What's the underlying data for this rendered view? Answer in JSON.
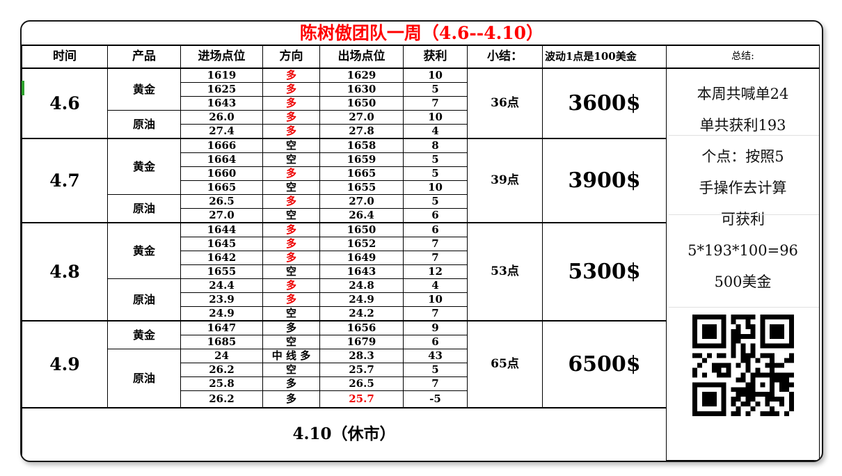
{
  "title": "陈树傲团队一周（4.6--4.10）",
  "columns": {
    "time": "时间",
    "product": "产品",
    "entry": "进场点位",
    "direction": "方向",
    "exit": "出场点位",
    "profit": "获利",
    "subtotal": "小结：",
    "note": "波动1点是100美金",
    "summary": "总结:"
  },
  "sections": [
    {
      "date": "4.6",
      "subtotal": "36点",
      "money": "3600$",
      "products": [
        {
          "name": "黄金"
        },
        {
          "name": "原油"
        }
      ],
      "rows": [
        {
          "entry": "1619",
          "direction": "多",
          "exit": "1629",
          "profit": "10"
        },
        {
          "entry": "1625",
          "direction": "多",
          "exit": "1630",
          "profit": "5"
        },
        {
          "entry": "1643",
          "direction": "多",
          "exit": "1650",
          "profit": "7"
        },
        {
          "entry": "26.0",
          "direction": "多",
          "exit": "27.0",
          "profit": "10"
        },
        {
          "entry": "27.4",
          "direction": "多",
          "exit": "27.8",
          "profit": "4"
        }
      ]
    },
    {
      "date": "4.7",
      "subtotal": "39点",
      "money": "3900$",
      "products": [
        {
          "name": "黄金"
        },
        {
          "name": "原油"
        }
      ],
      "rows": [
        {
          "entry": "1666",
          "direction": "空",
          "exit": "1658",
          "profit": "8"
        },
        {
          "entry": "1664",
          "direction": "空",
          "exit": "1659",
          "profit": "5"
        },
        {
          "entry": "1660",
          "direction": "多",
          "exit": "1665",
          "profit": "5"
        },
        {
          "entry": "1665",
          "direction": "空",
          "exit": "1655",
          "profit": "10"
        },
        {
          "entry": "26.5",
          "direction": "多",
          "exit": "27.0",
          "profit": "5"
        },
        {
          "entry": "27.0",
          "direction": "空",
          "exit": "26.4",
          "profit": "6"
        }
      ]
    },
    {
      "date": "4.8",
      "subtotal": "53点",
      "money": "5300$",
      "products": [
        {
          "name": "黄金"
        },
        {
          "name": "原油"
        }
      ],
      "rows": [
        {
          "entry": "1644",
          "direction": "多",
          "exit": "1650",
          "profit": "6"
        },
        {
          "entry": "1645",
          "direction": "多",
          "exit": "1652",
          "profit": "7"
        },
        {
          "entry": "1642",
          "direction": "多",
          "exit": "1649",
          "profit": "7"
        },
        {
          "entry": "1655",
          "direction": "空",
          "exit": "1643",
          "profit": "12"
        },
        {
          "entry": "24.4",
          "direction": "多",
          "exit": "24.8",
          "profit": "4"
        },
        {
          "entry": "23.9",
          "direction": "多",
          "exit": "24.9",
          "profit": "10"
        },
        {
          "entry": "24.9",
          "direction": "空",
          "exit": "24.2",
          "profit": "7"
        }
      ]
    },
    {
      "date": "4.9",
      "subtotal": "65点",
      "money": "6500$",
      "products": [
        {
          "name": "黄金"
        },
        {
          "name": "原油"
        }
      ],
      "rows": [
        {
          "entry": "1647",
          "direction": "多",
          "exit": "1656",
          "profit": "9"
        },
        {
          "entry": "1685",
          "direction": "空",
          "exit": "1679",
          "profit": "6"
        },
        {
          "entry": "24",
          "direction": "中 线 多",
          "exit": "28.3",
          "profit": "43"
        },
        {
          "entry": "26.2",
          "direction": "空",
          "exit": "25.7",
          "profit": "5"
        },
        {
          "entry": "25.8",
          "direction": "多",
          "exit": "26.5",
          "profit": "7"
        },
        {
          "entry": "26.2",
          "direction": "多",
          "exit": "25.7",
          "profit": "-5"
        }
      ]
    }
  ],
  "bottom_row": "4.10（休市）",
  "summary": {
    "lines": [
      "本周共喊单24",
      "单共获利193",
      "个点：按照5",
      "手操作去计算",
      "可获利",
      "5*193*100=96",
      "500美金"
    ]
  },
  "colors": {
    "title_red": "#ff0000",
    "direction_red": "#ee0000",
    "green_mark": "#2da12d"
  }
}
